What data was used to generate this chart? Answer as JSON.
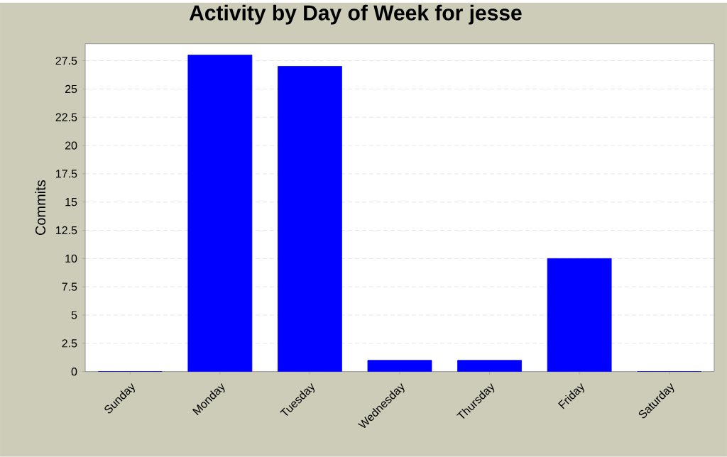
{
  "chart_data": {
    "type": "bar",
    "title": "Activity by Day of Week for jesse",
    "ylabel": "Commits",
    "categories": [
      "Sunday",
      "Monday",
      "Tuesday",
      "Wednesday",
      "Thursday",
      "Friday",
      "Saturday"
    ],
    "values": [
      0,
      28,
      27,
      1,
      1,
      10,
      0
    ],
    "color": "#0000ff",
    "ylim": [
      0,
      29
    ],
    "yticks": [
      0,
      2.5,
      5,
      7.5,
      10,
      12.5,
      15,
      17.5,
      20,
      22.5,
      25,
      27.5
    ],
    "grid": "y"
  }
}
